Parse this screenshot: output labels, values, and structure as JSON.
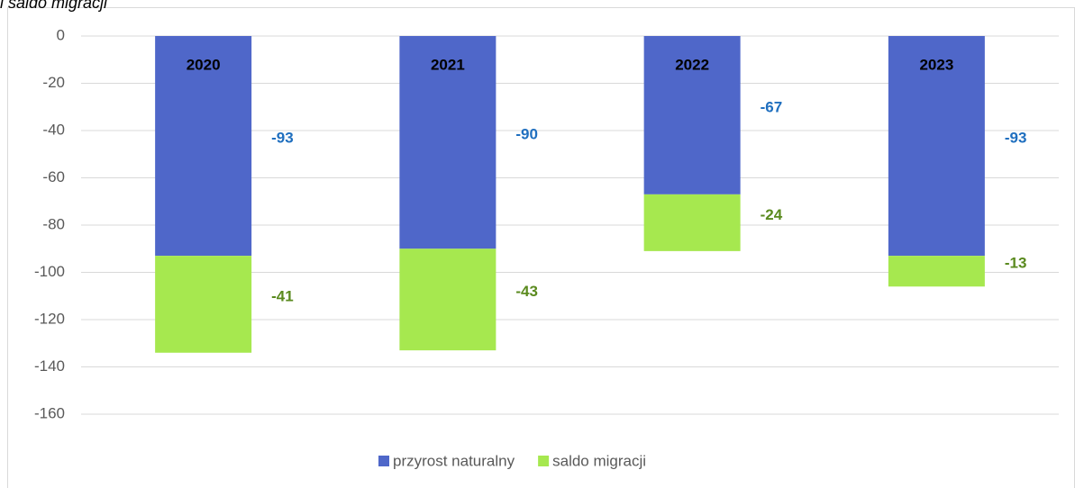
{
  "chart_data": {
    "type": "stacked_bar",
    "title": "i saldo migracji",
    "categories": [
      "2020",
      "2021",
      "2022",
      "2023"
    ],
    "series": [
      {
        "name": "przyrost naturalny",
        "color": "#4f67c9",
        "label_color": "#1f6fbf",
        "values": [
          -93,
          -90,
          -67,
          -93
        ]
      },
      {
        "name": "saldo migracji",
        "color": "#a6e84f",
        "label_color": "#5a8a1e",
        "values": [
          -41,
          -43,
          -24,
          -13
        ]
      }
    ],
    "ylim": [
      -160,
      0
    ],
    "yticks": [
      0,
      -20,
      -40,
      -60,
      -80,
      -100,
      -120,
      -140,
      -160
    ],
    "grid": true
  }
}
